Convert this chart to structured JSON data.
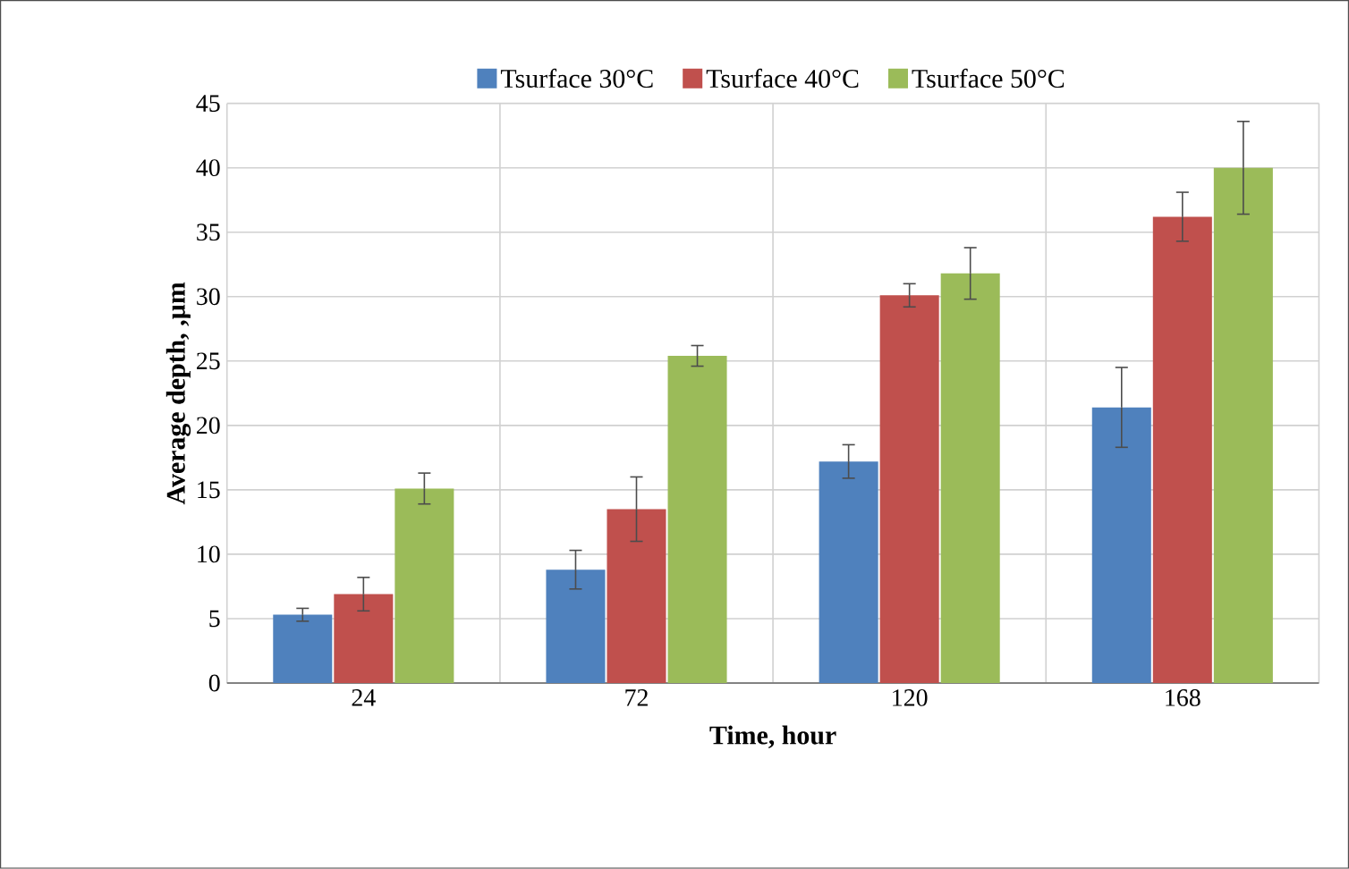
{
  "chart_data": {
    "type": "bar",
    "xlabel": "Time, hour",
    "ylabel": "Average depth, ,µm",
    "categories": [
      "24",
      "72",
      "120",
      "168"
    ],
    "series": [
      {
        "name": "Tsurface 30°C",
        "color": "#4f81bd",
        "values": [
          5.3,
          8.8,
          17.2,
          21.4
        ],
        "errors": [
          0.5,
          1.5,
          1.3,
          3.1
        ]
      },
      {
        "name": "Tsurface 40°C",
        "color": "#c0504d",
        "values": [
          6.9,
          13.5,
          30.1,
          36.2
        ],
        "errors": [
          1.3,
          2.5,
          0.9,
          1.9
        ]
      },
      {
        "name": "Tsurface 50°C",
        "color": "#9bbb59",
        "values": [
          15.1,
          25.4,
          31.8,
          40.0
        ],
        "errors": [
          1.2,
          0.8,
          2.0,
          3.6
        ]
      }
    ],
    "ylim": [
      0,
      45
    ],
    "yticks": [
      0,
      5,
      10,
      15,
      20,
      25,
      30,
      35,
      40,
      45
    ],
    "grid": true,
    "legend": "top"
  }
}
